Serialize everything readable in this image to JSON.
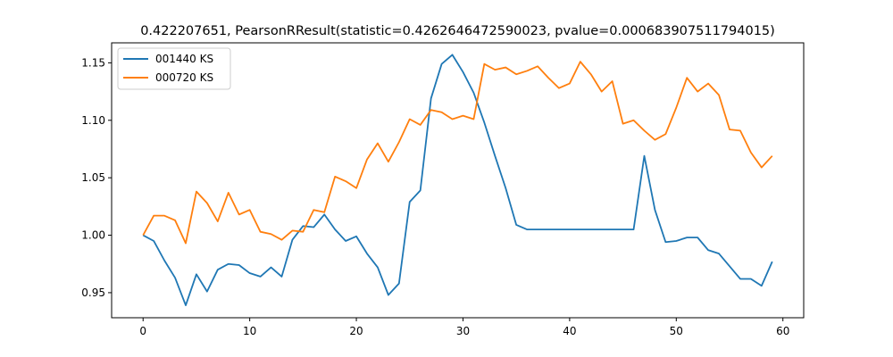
{
  "chart_data": {
    "type": "line",
    "title": "0.422207651, PearsonRResult(statistic=0.4262646472590023, pvalue=0.000683907511794015)",
    "xlabel": "",
    "ylabel": "",
    "xlim": [
      -2.95,
      61.95
    ],
    "ylim": [
      0.9282,
      1.1674
    ],
    "xticks": [
      0,
      10,
      20,
      30,
      40,
      50,
      60
    ],
    "xtick_labels": [
      "0",
      "10",
      "20",
      "30",
      "40",
      "50",
      "60"
    ],
    "yticks": [
      0.95,
      1.0,
      1.05,
      1.1,
      1.15
    ],
    "ytick_labels": [
      "0.95",
      "1.00",
      "1.05",
      "1.10",
      "1.15"
    ],
    "grid": false,
    "legend_position": "upper-left",
    "x": [
      0,
      1,
      2,
      3,
      4,
      5,
      6,
      7,
      8,
      9,
      10,
      11,
      12,
      13,
      14,
      15,
      16,
      17,
      18,
      19,
      20,
      21,
      22,
      23,
      24,
      25,
      26,
      27,
      28,
      29,
      30,
      31,
      32,
      33,
      34,
      35,
      36,
      37,
      38,
      39,
      40,
      41,
      42,
      43,
      44,
      45,
      46,
      47,
      48,
      49,
      50,
      51,
      52,
      53,
      54,
      55,
      56,
      57,
      58,
      59
    ],
    "series": [
      {
        "name": "001440 KS",
        "color": "#1f77b4",
        "values": [
          1.0,
          0.995,
          0.978,
          0.963,
          0.939,
          0.966,
          0.951,
          0.97,
          0.975,
          0.974,
          0.967,
          0.964,
          0.972,
          0.964,
          0.996,
          1.008,
          1.007,
          1.018,
          1.005,
          0.995,
          0.999,
          0.984,
          0.972,
          0.948,
          0.958,
          1.029,
          1.039,
          1.119,
          1.149,
          1.157,
          1.142,
          1.124,
          1.098,
          1.069,
          1.041,
          1.009,
          1.005,
          1.005,
          1.005,
          1.005,
          1.005,
          1.005,
          1.005,
          1.005,
          1.005,
          1.005,
          1.005,
          1.069,
          1.022,
          0.994,
          0.995,
          0.998,
          0.998,
          0.987,
          0.984,
          0.973,
          0.962,
          0.962,
          0.956,
          0.977
        ]
      },
      {
        "name": "000720 KS",
        "color": "#ff7f0e",
        "values": [
          1.0,
          1.017,
          1.017,
          1.013,
          0.993,
          1.038,
          1.028,
          1.012,
          1.037,
          1.018,
          1.022,
          1.003,
          1.001,
          0.996,
          1.004,
          1.003,
          1.022,
          1.02,
          1.051,
          1.047,
          1.041,
          1.066,
          1.08,
          1.064,
          1.081,
          1.101,
          1.096,
          1.109,
          1.107,
          1.101,
          1.104,
          1.101,
          1.149,
          1.144,
          1.146,
          1.14,
          1.143,
          1.147,
          1.137,
          1.128,
          1.132,
          1.151,
          1.14,
          1.125,
          1.134,
          1.097,
          1.1,
          1.091,
          1.083,
          1.088,
          1.111,
          1.137,
          1.125,
          1.132,
          1.122,
          1.092,
          1.091,
          1.072,
          1.059,
          1.069
        ]
      }
    ]
  }
}
